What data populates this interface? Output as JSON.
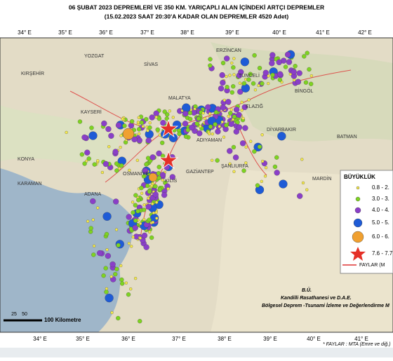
{
  "header": {
    "line1": "06 ŞUBAT 2023  DEPREMLERİ VE 350  KM. YARIÇAPLI  ALAN  İÇİNDEKİ  ARTÇI DEPREMLER",
    "line2": "(15.02.2023 SAAT  20:30'A  KADAR OLAN DEPREMLER   4520  Adet)"
  },
  "top_longitudes": [
    "34° E",
    "35° E",
    "36° E",
    "37° E",
    "38° E",
    "39° E",
    "40° E",
    "41° E",
    "42° E"
  ],
  "bottom_longitudes": [
    "34° E",
    "35° E",
    "36° E",
    "37° E",
    "38° E",
    "39° E",
    "40° E",
    "41° E"
  ],
  "cities": [
    "YOZGAT",
    "KIRŞEHİR",
    "SİVAS",
    "ERZİNCAN",
    "TUNCELİ",
    "KAYSERİ",
    "MALATYA",
    "ELAZIĞ",
    "BİNGÖL",
    "DİYARBAKIR",
    "BATMAN",
    "ADIYAMAN",
    "KONYA",
    "KARAMAN",
    "ADANA",
    "OSMANİYE",
    "GAZİANTEP",
    "KİLİS",
    "ŞANLIURFA",
    "MARDİN"
  ],
  "legend": {
    "title": "BÜYÜKLÜK",
    "items": [
      "0.8 - 2.",
      "3.0 - 3.",
      "4.0 - 4.",
      "5.0 - 5.",
      "6.0 - 6.",
      "7.6 - 7.7"
    ],
    "faults": "FAYLAR (M"
  },
  "scale": {
    "ticks": [
      "25",
      "50"
    ],
    "label": "100 Kilometre"
  },
  "credits": {
    "org1": "B.Ü.",
    "org2": "Kandilli Rasathanesi ve D.A.E.",
    "org3": "Bölgesel Deprem -Tsunami İzleme ve Değerlendirme M",
    "faults_source": "* FAYLAR : MTA (Emre ve diğ.)"
  }
}
